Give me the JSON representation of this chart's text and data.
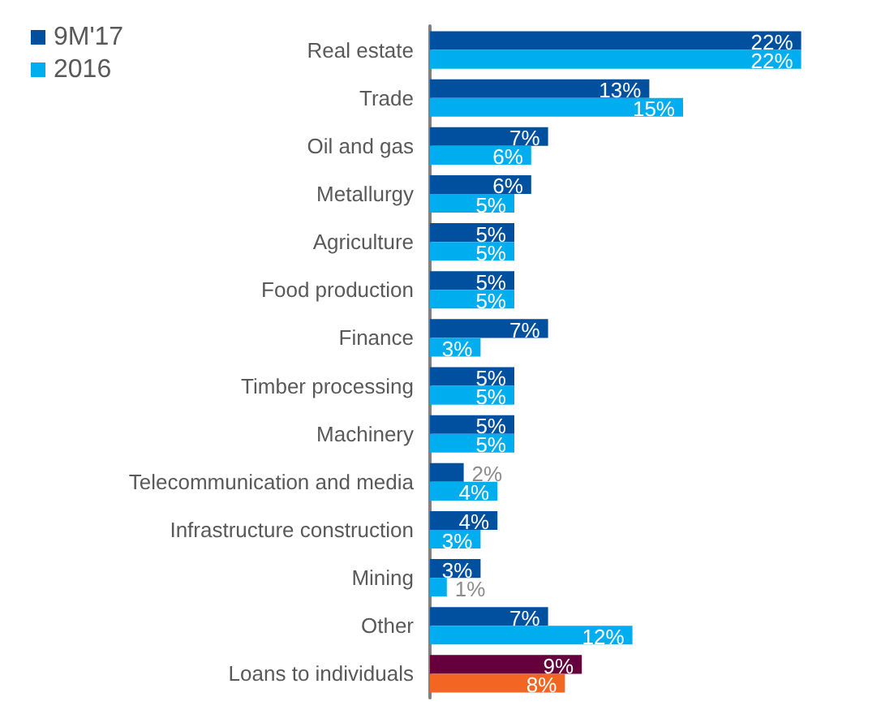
{
  "chart_data": {
    "type": "bar",
    "orientation": "horizontal",
    "legend": "top left",
    "categories": [
      "Real estate",
      "Trade",
      "Oil and gas",
      "Metallurgy",
      "Agriculture",
      "Food production",
      "Finance",
      "Timber processing",
      "Machinery",
      "Telecommunication and media",
      "Infrastructure construction",
      "Mining",
      "Other",
      "Loans to individuals"
    ],
    "series": [
      {
        "name": "9M'17",
        "color": "#0050a0",
        "colors": [
          "#0050a0",
          "#0050a0",
          "#0050a0",
          "#0050a0",
          "#0050a0",
          "#0050a0",
          "#0050a0",
          "#0050a0",
          "#0050a0",
          "#0050a0",
          "#0050a0",
          "#0050a0",
          "#0050a0",
          "#65003c"
        ],
        "values": [
          22,
          13,
          7,
          6,
          5,
          5,
          7,
          5,
          5,
          2,
          4,
          3,
          7,
          9
        ],
        "value_labels": [
          "22%",
          "13%",
          "7%",
          "6%",
          "5%",
          "5%",
          "7%",
          "5%",
          "5%",
          "2%",
          "4%",
          "3%",
          "7%",
          "9%"
        ]
      },
      {
        "name": "2016",
        "color": "#00aeef",
        "colors": [
          "#00aeef",
          "#00aeef",
          "#00aeef",
          "#00aeef",
          "#00aeef",
          "#00aeef",
          "#00aeef",
          "#00aeef",
          "#00aeef",
          "#00aeef",
          "#00aeef",
          "#00aeef",
          "#00aeef",
          "#f26522"
        ],
        "values": [
          22,
          15,
          6,
          5,
          5,
          5,
          3,
          5,
          5,
          4,
          3,
          1,
          12,
          8
        ],
        "value_labels": [
          "22%",
          "15%",
          "6%",
          "5%",
          "5%",
          "5%",
          "3%",
          "5%",
          "5%",
          "4%",
          "3%",
          "1%",
          "12%",
          "8%"
        ]
      }
    ]
  }
}
